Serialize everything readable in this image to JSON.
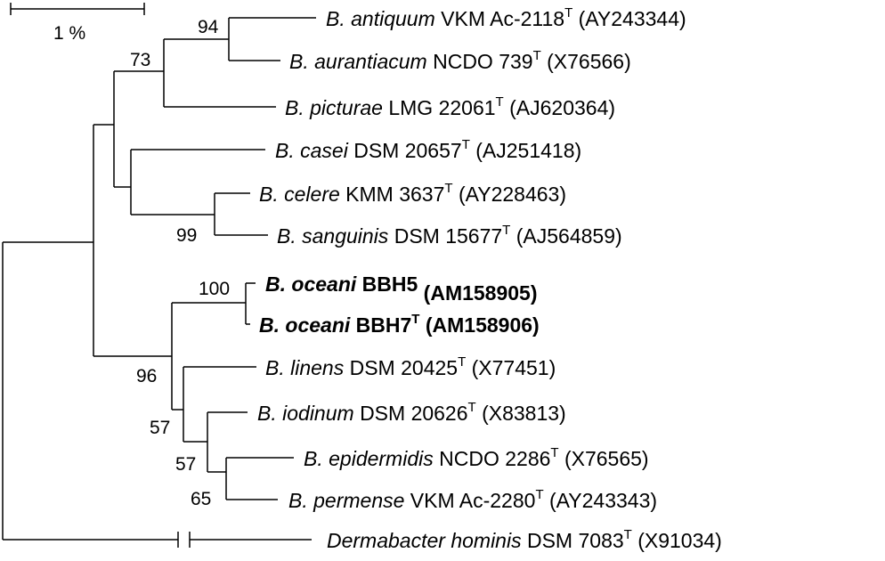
{
  "scale_bar": {
    "label": "1 %"
  },
  "bootstrap": {
    "n94": "94",
    "n73": "73",
    "n99": "99",
    "n100": "100",
    "n96": "96",
    "n57a": "57",
    "n57b": "57",
    "n65": "65"
  },
  "taxa": [
    {
      "genus": "B. antiquum",
      "strain": "VKM Ac-2118",
      "sup": "T",
      "acc": "(AY243344)"
    },
    {
      "genus": "B. aurantiacum",
      "strain": "NCDO 739",
      "sup": "T",
      "acc": "(X76566)"
    },
    {
      "genus": "B. picturae",
      "strain": "LMG 22061",
      "sup": "T",
      "acc": "(AJ620364)"
    },
    {
      "genus": "B. casei",
      "strain": "DSM 20657",
      "sup": "T",
      "acc": "(AJ251418)"
    },
    {
      "genus": "B. celere",
      "strain": "KMM 3637",
      "sup": "T",
      "acc": "(AY228463)"
    },
    {
      "genus": "B. sanguinis",
      "strain": "DSM 15677",
      "sup": "T",
      "acc": "(AJ564859)"
    },
    {
      "genus": "B. oceani",
      "strain": "BBH5",
      "sup": "",
      "acc": "(AM158905)"
    },
    {
      "genus": "B. oceani",
      "strain": "BBH7",
      "sup": "T",
      "acc": "(AM158906)"
    },
    {
      "genus": "B. linens",
      "strain": "DSM 20425",
      "sup": "T",
      "acc": "(X77451)"
    },
    {
      "genus": "B. iodinum",
      "strain": "DSM 20626",
      "sup": "T",
      "acc": "(X83813)"
    },
    {
      "genus": "B. epidermidis",
      "strain": "NCDO 2286",
      "sup": "T",
      "acc": "(X76565)"
    },
    {
      "genus": "B. permense",
      "strain": "VKM Ac-2280",
      "sup": "T",
      "acc": "(AY243343)"
    },
    {
      "genus": "Dermabacter hominis",
      "strain": "DSM 7083",
      "sup": "T",
      "acc": "(X91034)"
    }
  ]
}
